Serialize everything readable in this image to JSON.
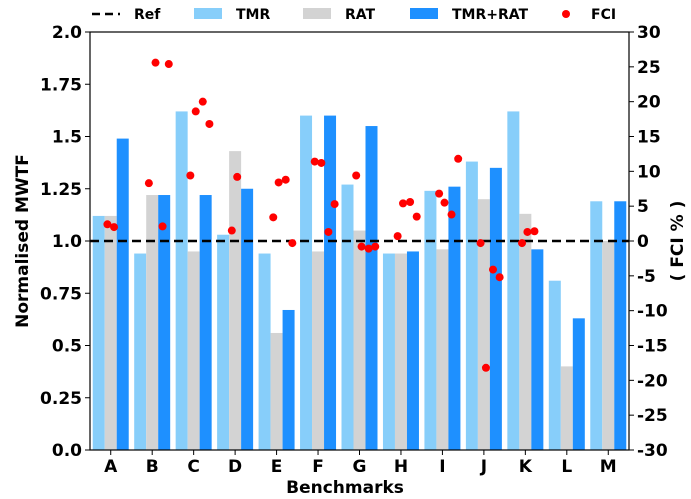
{
  "chart_data": {
    "type": "bar",
    "xlabel": "Benchmarks",
    "ylabel": "Normalised MWTF",
    "y2label": "( FCI % )",
    "ylim": [
      0,
      2.0
    ],
    "y2lim": [
      -30,
      30
    ],
    "yticks": [
      "0.0",
      "0.25",
      "0.5",
      "0.75",
      "1.0",
      "1.25",
      "1.5",
      "1.75",
      "2.0"
    ],
    "y2ticks": [
      "-30",
      "-25",
      "-20",
      "-15",
      "-10",
      "-5",
      "0",
      "5",
      "10",
      "15",
      "20",
      "25",
      "30"
    ],
    "categories": [
      "A",
      "B",
      "C",
      "D",
      "E",
      "F",
      "G",
      "H",
      "I",
      "J",
      "K",
      "L",
      "M"
    ],
    "reference": {
      "name": "Ref",
      "value": 1.0
    },
    "series": [
      {
        "name": "TMR",
        "color": "#87CEFA",
        "values": [
          1.12,
          0.94,
          1.62,
          1.03,
          0.94,
          1.6,
          1.27,
          0.94,
          1.24,
          1.38,
          1.62,
          0.81,
          1.19
        ]
      },
      {
        "name": "RAT",
        "color": "#D3D3D3",
        "values": [
          1.12,
          1.22,
          0.95,
          1.43,
          0.56,
          0.95,
          1.05,
          0.94,
          0.96,
          1.2,
          1.13,
          0.4,
          1.0
        ]
      },
      {
        "name": "TMR+RAT",
        "color": "#1E90FF",
        "values": [
          1.49,
          1.22,
          1.22,
          1.25,
          0.67,
          1.6,
          1.55,
          0.95,
          1.26,
          1.35,
          0.96,
          0.63,
          1.19
        ]
      }
    ],
    "fci": {
      "name": "FCI",
      "color": "#FF0000",
      "points": [
        [
          0.42,
          2.4
        ],
        [
          0.58,
          2.0
        ],
        [
          1.42,
          8.3
        ],
        [
          1.58,
          25.6
        ],
        [
          1.75,
          2.1
        ],
        [
          1.9,
          25.4
        ],
        [
          2.42,
          9.4
        ],
        [
          2.55,
          18.6
        ],
        [
          2.72,
          20.0
        ],
        [
          2.88,
          16.8
        ],
        [
          3.42,
          1.5
        ],
        [
          3.55,
          9.2
        ],
        [
          4.42,
          3.4
        ],
        [
          4.55,
          8.4
        ],
        [
          4.72,
          8.8
        ],
        [
          4.88,
          -0.3
        ],
        [
          5.42,
          11.4
        ],
        [
          5.58,
          11.2
        ],
        [
          5.75,
          1.3
        ],
        [
          5.9,
          5.3
        ],
        [
          6.42,
          9.4
        ],
        [
          6.55,
          -0.8
        ],
        [
          6.72,
          -1.1
        ],
        [
          6.88,
          -0.8
        ],
        [
          7.42,
          0.7
        ],
        [
          7.55,
          5.4
        ],
        [
          7.72,
          5.6
        ],
        [
          7.88,
          3.5
        ],
        [
          8.42,
          6.8
        ],
        [
          8.55,
          5.5
        ],
        [
          8.72,
          3.8
        ],
        [
          8.88,
          11.8
        ],
        [
          9.42,
          -0.3
        ],
        [
          9.55,
          -18.2
        ],
        [
          9.72,
          -4.1
        ],
        [
          9.88,
          -5.2
        ],
        [
          10.42,
          -0.3
        ],
        [
          10.55,
          1.3
        ],
        [
          10.72,
          1.4
        ]
      ]
    },
    "legend_position": "top"
  }
}
